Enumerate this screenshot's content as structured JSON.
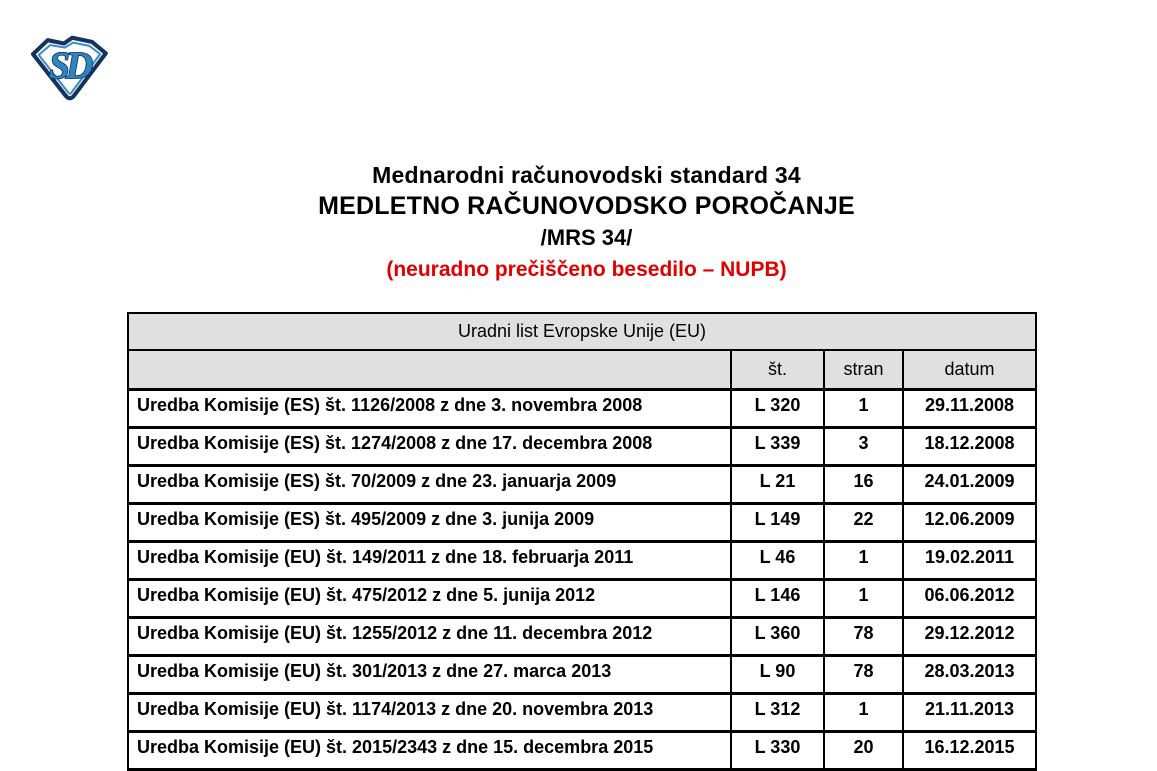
{
  "logo": {
    "letters": "SD",
    "fill_color": "#2e86c1",
    "outline_color": "#14335f"
  },
  "title": {
    "line1": "Mednarodni računovodski standard 34",
    "line2": "MEDLETNO RAČUNOVODSKO POROČANJE",
    "line3": "/MRS 34/",
    "subtitle": "(neuradno prečiščeno besedilo – NUPB)",
    "subtitle_color": "#e00000"
  },
  "table": {
    "caption": "Uradni list Evropske Unije (EU)",
    "header_bg": "#e0e0e0",
    "columns": [
      "",
      "št.",
      "stran",
      "datum"
    ],
    "rows": [
      {
        "act": "Uredba Komisije (ES) št. 1126/2008 z dne 3. novembra 2008",
        "st": "L 320",
        "stran": "1",
        "datum": "29.11.2008"
      },
      {
        "act": "Uredba Komisije (ES) št. 1274/2008 z dne 17. decembra 2008",
        "st": "L 339",
        "stran": "3",
        "datum": "18.12.2008"
      },
      {
        "act": "Uredba Komisije (ES) št. 70/2009 z dne 23. januarja 2009",
        "st": "L 21",
        "stran": "16",
        "datum": "24.01.2009"
      },
      {
        "act": "Uredba Komisije (ES) št. 495/2009 z dne 3. junija 2009",
        "st": "L 149",
        "stran": "22",
        "datum": "12.06.2009"
      },
      {
        "act": "Uredba Komisije (EU) št. 149/2011 z dne 18. februarja 2011",
        "st": "L 46",
        "stran": "1",
        "datum": "19.02.2011"
      },
      {
        "act": "Uredba Komisije (EU) št. 475/2012 z dne 5. junija 2012",
        "st": "L 146",
        "stran": "1",
        "datum": "06.06.2012"
      },
      {
        "act": "Uredba Komisije (EU) št. 1255/2012 z dne 11. decembra 2012",
        "st": "L 360",
        "stran": "78",
        "datum": "29.12.2012"
      },
      {
        "act": "Uredba Komisije (EU) št. 301/2013 z dne 27. marca 2013",
        "st": "L 90",
        "stran": "78",
        "datum": "28.03.2013"
      },
      {
        "act": "Uredba Komisije (EU) št. 1174/2013 z dne 20. novembra 2013",
        "st": "L 312",
        "stran": "1",
        "datum": "21.11.2013"
      },
      {
        "act": "Uredba Komisije (EU) št. 2015/2343 z dne 15. decembra 2015",
        "st": "L 330",
        "stran": "20",
        "datum": "16.12.2015"
      }
    ]
  }
}
